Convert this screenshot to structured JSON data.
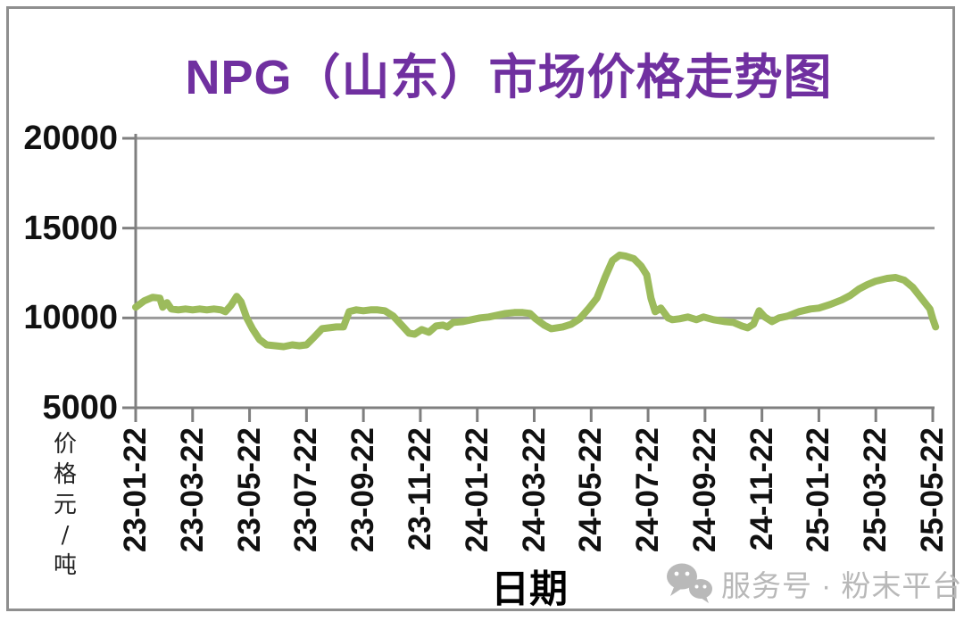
{
  "colors": {
    "title": "#7030a0",
    "line": "#9cbb5c",
    "grid": "#9a9a9a",
    "axis": "#7f7f7f",
    "tick_text": "#111111",
    "watermark": "#b8b8b8",
    "frame_border": "#8f8f8f"
  },
  "chart_data": {
    "type": "line",
    "title": "NPG（山东）市场价格走势图",
    "xlabel": "日期",
    "ylabel": "价格元/吨",
    "ylim": [
      5000,
      20000
    ],
    "yticks": [
      5000,
      10000,
      15000,
      20000
    ],
    "x_tick_interval_months": 2,
    "xticklabels": [
      "23-01-22",
      "23-03-22",
      "23-05-22",
      "23-07-22",
      "23-09-22",
      "23-11-22",
      "24-01-22",
      "24-03-22",
      "24-05-22",
      "24-07-22",
      "24-09-22",
      "24-11-22",
      "25-01-22",
      "25-03-22",
      "25-05-22"
    ],
    "grid": "horizontal",
    "legend": "none",
    "series": [
      {
        "color": "#9cbb5c",
        "stroke_width": 8,
        "x_unit": "months_since_23-01-22",
        "y_unit": "yuan_per_ton",
        "points": [
          [
            0,
            10600
          ],
          [
            0.3,
            10950
          ],
          [
            0.6,
            11150
          ],
          [
            0.85,
            11100
          ],
          [
            0.95,
            10600
          ],
          [
            1.1,
            10850
          ],
          [
            1.25,
            10500
          ],
          [
            1.5,
            10450
          ],
          [
            1.75,
            10500
          ],
          [
            2.0,
            10450
          ],
          [
            2.25,
            10500
          ],
          [
            2.5,
            10450
          ],
          [
            2.75,
            10500
          ],
          [
            3.0,
            10450
          ],
          [
            3.15,
            10350
          ],
          [
            3.35,
            10700
          ],
          [
            3.55,
            11200
          ],
          [
            3.7,
            10900
          ],
          [
            3.9,
            10000
          ],
          [
            4.1,
            9400
          ],
          [
            4.35,
            8800
          ],
          [
            4.6,
            8500
          ],
          [
            4.9,
            8450
          ],
          [
            5.2,
            8400
          ],
          [
            5.5,
            8500
          ],
          [
            5.75,
            8450
          ],
          [
            6.0,
            8500
          ],
          [
            6.25,
            8900
          ],
          [
            6.55,
            9400
          ],
          [
            6.8,
            9450
          ],
          [
            7.05,
            9500
          ],
          [
            7.3,
            9500
          ],
          [
            7.5,
            10350
          ],
          [
            7.75,
            10450
          ],
          [
            8.0,
            10400
          ],
          [
            8.25,
            10450
          ],
          [
            8.5,
            10450
          ],
          [
            8.75,
            10400
          ],
          [
            9.05,
            10100
          ],
          [
            9.4,
            9500
          ],
          [
            9.6,
            9150
          ],
          [
            9.8,
            9100
          ],
          [
            10.05,
            9350
          ],
          [
            10.3,
            9200
          ],
          [
            10.55,
            9550
          ],
          [
            10.8,
            9600
          ],
          [
            10.95,
            9500
          ],
          [
            11.15,
            9750
          ],
          [
            11.5,
            9800
          ],
          [
            11.8,
            9900
          ],
          [
            12.1,
            10000
          ],
          [
            12.4,
            10050
          ],
          [
            12.7,
            10150
          ],
          [
            13.0,
            10250
          ],
          [
            13.3,
            10300
          ],
          [
            13.6,
            10300
          ],
          [
            13.85,
            10250
          ],
          [
            14.05,
            9950
          ],
          [
            14.35,
            9600
          ],
          [
            14.6,
            9400
          ],
          [
            14.8,
            9450
          ],
          [
            15.0,
            9500
          ],
          [
            15.3,
            9650
          ],
          [
            15.6,
            9950
          ],
          [
            15.9,
            10500
          ],
          [
            16.2,
            11100
          ],
          [
            16.5,
            12300
          ],
          [
            16.75,
            13200
          ],
          [
            17.0,
            13500
          ],
          [
            17.2,
            13450
          ],
          [
            17.5,
            13300
          ],
          [
            17.75,
            12900
          ],
          [
            17.95,
            12400
          ],
          [
            18.1,
            11100
          ],
          [
            18.25,
            10350
          ],
          [
            18.45,
            10550
          ],
          [
            18.7,
            10000
          ],
          [
            18.85,
            9900
          ],
          [
            19.1,
            9950
          ],
          [
            19.4,
            10050
          ],
          [
            19.7,
            9900
          ],
          [
            19.95,
            10050
          ],
          [
            20.3,
            9900
          ],
          [
            20.7,
            9800
          ],
          [
            21.0,
            9750
          ],
          [
            21.3,
            9550
          ],
          [
            21.5,
            9450
          ],
          [
            21.7,
            9650
          ],
          [
            21.9,
            10400
          ],
          [
            22.1,
            10050
          ],
          [
            22.35,
            9800
          ],
          [
            22.6,
            10000
          ],
          [
            22.9,
            10100
          ],
          [
            23.3,
            10350
          ],
          [
            23.7,
            10500
          ],
          [
            24.0,
            10550
          ],
          [
            24.4,
            10750
          ],
          [
            24.8,
            11000
          ],
          [
            25.1,
            11250
          ],
          [
            25.4,
            11600
          ],
          [
            25.7,
            11850
          ],
          [
            26.0,
            12050
          ],
          [
            26.4,
            12200
          ],
          [
            26.7,
            12250
          ],
          [
            27.0,
            12100
          ],
          [
            27.3,
            11700
          ],
          [
            27.6,
            11100
          ],
          [
            27.9,
            10500
          ],
          [
            28.0,
            9950
          ],
          [
            28.1,
            9500
          ]
        ]
      }
    ]
  },
  "watermark": {
    "icon": "wechat-icon",
    "text": "服务号 · 粉末平台"
  }
}
